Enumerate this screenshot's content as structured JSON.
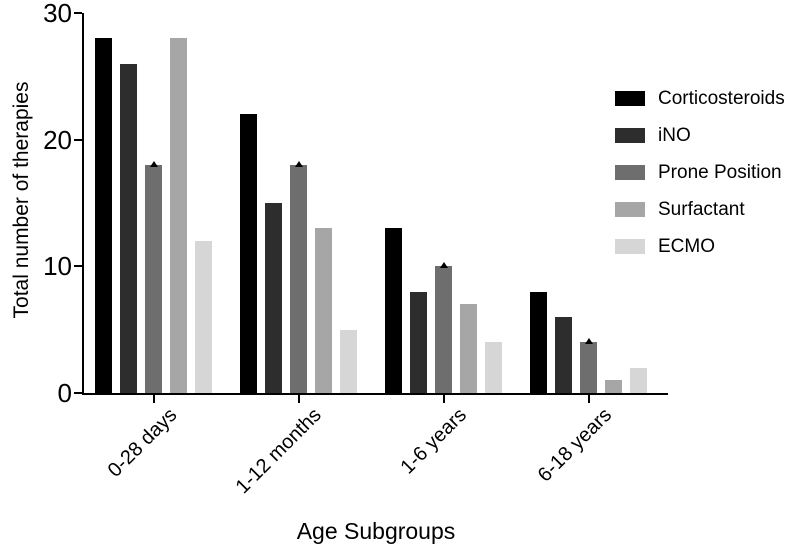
{
  "chart_data": {
    "type": "bar",
    "title": "",
    "xlabel": "Age Subgroups",
    "ylabel": "Total number of therapies",
    "ylim": [
      0,
      30
    ],
    "yticks": [
      0,
      10,
      20,
      30
    ],
    "categories": [
      "0-28 days",
      "1-12 months",
      "1-6 years",
      "6-18 years"
    ],
    "series": [
      {
        "name": "Corticosteroids",
        "color": "#000000",
        "values": [
          28,
          22,
          13,
          8
        ],
        "error_marker": false
      },
      {
        "name": "iNO",
        "color": "#2d2d2d",
        "values": [
          26,
          15,
          8,
          6
        ],
        "error_marker": false
      },
      {
        "name": "Prone Position",
        "color": "#6e6e6e",
        "values": [
          18,
          18,
          10,
          4
        ],
        "error_marker": true
      },
      {
        "name": "Surfactant",
        "color": "#a6a6a6",
        "values": [
          28,
          13,
          7,
          1
        ],
        "error_marker": false
      },
      {
        "name": "ECMO",
        "color": "#d6d6d6",
        "values": [
          12,
          5,
          4,
          2
        ],
        "error_marker": false
      }
    ],
    "legend_position": "right",
    "grid": false,
    "axis_color": "#000000"
  }
}
